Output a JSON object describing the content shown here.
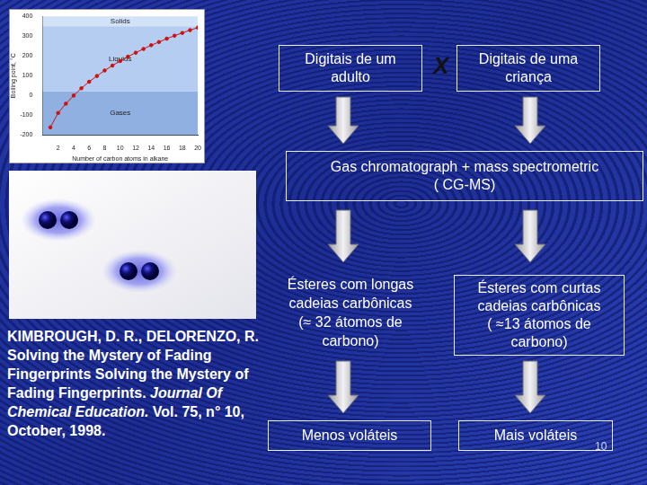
{
  "chart_data": {
    "type": "line",
    "x_label": "Number of carbon atoms in alkane",
    "y_label": "Boiling point, °C",
    "x": [
      1,
      2,
      3,
      4,
      5,
      6,
      7,
      8,
      9,
      10,
      11,
      12,
      13,
      14,
      15,
      16,
      17,
      18,
      19,
      20
    ],
    "values": [
      -162,
      -89,
      -42,
      -1,
      36,
      69,
      98,
      126,
      151,
      174,
      196,
      216,
      235,
      254,
      270,
      287,
      302,
      316,
      330,
      343
    ],
    "color": "#cc1111",
    "marker": "circle",
    "grid": false,
    "xlim": [
      0,
      20
    ],
    "xticks": [
      2,
      4,
      6,
      8,
      10,
      12,
      14,
      16,
      18,
      20
    ],
    "ylim": [
      -200,
      400
    ],
    "yticks": [
      -200,
      -100,
      0,
      100,
      200,
      300,
      400
    ],
    "regions": [
      {
        "label": "Gases",
        "from": -200,
        "to": 20
      },
      {
        "label": "Liquids",
        "from": 20,
        "to": 350
      },
      {
        "label": "Solids",
        "from": 350,
        "to": 400
      }
    ]
  },
  "diagram": {
    "left_input": [
      "Digitais de um",
      "adulto"
    ],
    "operator": "X",
    "right_input": [
      "Digitais de uma",
      "criança"
    ],
    "method": [
      "Gas chromatograph + mass spectrometric",
      "( CG-MS)"
    ],
    "left_result": [
      "Ésteres com longas",
      "cadeias carbônicas",
      "(≈ 32 átomos de",
      "carbono)"
    ],
    "right_result": [
      "Ésteres com curtas",
      "cadeias carbônicas",
      "( ≈13 átomos de",
      "carbono)"
    ],
    "left_conclusion": [
      "Menos voláteis"
    ],
    "right_conclusion": [
      "Mais voláteis"
    ]
  },
  "citation": [
    {
      "text": "KIMBROUGH, D. R., DELORENZO, R. Solving the Mystery of Fading Fingerprints Solving the Mystery of Fading Fingerprints. ",
      "italic": false
    },
    {
      "text": "Journal Of Chemical Education.",
      "italic": true
    },
    {
      "text": " Vol. 75, n° 10, October, 1998.",
      "italic": false
    }
  ],
  "page_number": 10
}
